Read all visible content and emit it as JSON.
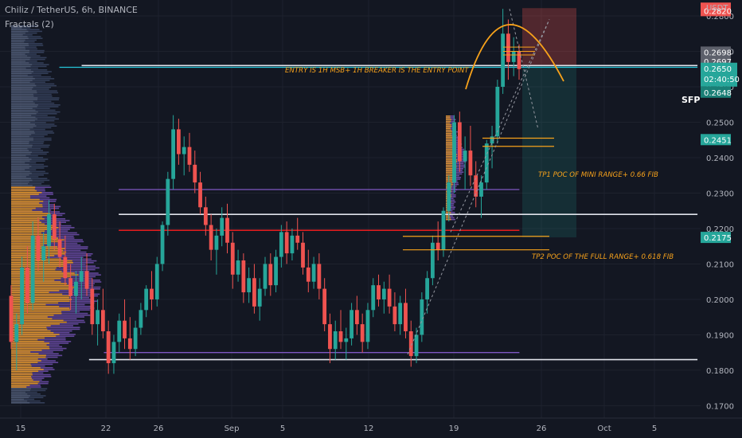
{
  "header": {
    "symbol_line": "Chiliz / TetherUS, 6h, BINANCE",
    "indicator": "Fractals (2)"
  },
  "axis_unit": "USDT",
  "colors": {
    "background": "#131722",
    "bull": "#26a69a",
    "bear": "#ef5350",
    "orange": "#f7a21b",
    "purple": "#7e57c2",
    "white_line": "#e0e3eb",
    "cyan_line": "#26c6da",
    "red_line": "#ff1e1e"
  },
  "chart_data": {
    "type": "candlestick",
    "x_ticks": [
      "15",
      "22",
      "26",
      "Sep",
      "5",
      "12",
      "19",
      "26",
      "Oct",
      "5"
    ],
    "y_ticks": [
      "0.2800",
      "0.2700",
      "0.2600",
      "0.2500",
      "0.2400",
      "0.2300",
      "0.2200",
      "0.2100",
      "0.2000",
      "0.1900",
      "0.1800",
      "0.1700"
    ],
    "ylim": [
      0.1665,
      0.2845
    ],
    "price_labels": [
      {
        "text": "0.2822",
        "price": 0.2822,
        "color": "#ef5350"
      },
      {
        "text": "0.2820",
        "price": 0.2815,
        "color": "#ef5350"
      },
      {
        "text": "0.2698",
        "price": 0.2698,
        "color": "#5d606b"
      },
      {
        "text": "0.2697",
        "price": 0.2672,
        "color": "#5d606b"
      },
      {
        "text": "0.2451",
        "price": 0.2451,
        "color": "#26a69a"
      },
      {
        "text": "0.2175",
        "price": 0.2175,
        "color": "#26a69a"
      }
    ],
    "current_price": {
      "price": "0.2650",
      "countdown": "02:40:50",
      "prev": "0.2648"
    },
    "annotations": {
      "entry": "ENTRY IS 1H MSB+ 1H BREAKER IS THE ENTRY POINT",
      "tp1": "TP1 POC OF MINI RANGE+ 0.66 FIB",
      "tp2": "TP2 POC OF THE FULL RANGE+ 0.618 FIB",
      "sfp": "SFP"
    },
    "levels": [
      {
        "price": 0.2655,
        "color": "cyan",
        "from": 0.08,
        "to": 0.94
      },
      {
        "price": 0.266,
        "color": "white",
        "from": 0.11,
        "to": 0.94
      },
      {
        "price": 0.231,
        "color": "purple",
        "from": 0.16,
        "to": 0.7
      },
      {
        "price": 0.224,
        "color": "white",
        "from": 0.16,
        "to": 0.94
      },
      {
        "price": 0.2195,
        "color": "red",
        "from": 0.16,
        "to": 0.7
      },
      {
        "price": 0.185,
        "color": "purple",
        "from": 0.14,
        "to": 0.7
      },
      {
        "price": 0.183,
        "color": "white",
        "from": 0.12,
        "to": 0.94
      }
    ],
    "candles": [
      {
        "o": 0.201,
        "h": 0.204,
        "l": 0.186,
        "c": 0.188
      },
      {
        "o": 0.188,
        "h": 0.196,
        "l": 0.18,
        "c": 0.193
      },
      {
        "o": 0.193,
        "h": 0.212,
        "l": 0.19,
        "c": 0.209
      },
      {
        "o": 0.209,
        "h": 0.215,
        "l": 0.196,
        "c": 0.199
      },
      {
        "o": 0.199,
        "h": 0.222,
        "l": 0.197,
        "c": 0.218
      },
      {
        "o": 0.218,
        "h": 0.223,
        "l": 0.208,
        "c": 0.211
      },
      {
        "o": 0.211,
        "h": 0.219,
        "l": 0.205,
        "c": 0.215
      },
      {
        "o": 0.215,
        "h": 0.228,
        "l": 0.21,
        "c": 0.224
      },
      {
        "o": 0.224,
        "h": 0.227,
        "l": 0.214,
        "c": 0.217
      },
      {
        "o": 0.217,
        "h": 0.222,
        "l": 0.209,
        "c": 0.212
      },
      {
        "o": 0.212,
        "h": 0.218,
        "l": 0.204,
        "c": 0.206
      },
      {
        "o": 0.206,
        "h": 0.21,
        "l": 0.197,
        "c": 0.201
      },
      {
        "o": 0.201,
        "h": 0.208,
        "l": 0.196,
        "c": 0.205
      },
      {
        "o": 0.205,
        "h": 0.212,
        "l": 0.2,
        "c": 0.208
      },
      {
        "o": 0.208,
        "h": 0.213,
        "l": 0.201,
        "c": 0.203
      },
      {
        "o": 0.203,
        "h": 0.206,
        "l": 0.19,
        "c": 0.193
      },
      {
        "o": 0.193,
        "h": 0.2,
        "l": 0.187,
        "c": 0.197
      },
      {
        "o": 0.197,
        "h": 0.203,
        "l": 0.189,
        "c": 0.191
      },
      {
        "o": 0.191,
        "h": 0.194,
        "l": 0.179,
        "c": 0.182
      },
      {
        "o": 0.182,
        "h": 0.19,
        "l": 0.179,
        "c": 0.188
      },
      {
        "o": 0.188,
        "h": 0.196,
        "l": 0.185,
        "c": 0.194
      },
      {
        "o": 0.194,
        "h": 0.2,
        "l": 0.186,
        "c": 0.189
      },
      {
        "o": 0.189,
        "h": 0.195,
        "l": 0.183,
        "c": 0.186
      },
      {
        "o": 0.186,
        "h": 0.194,
        "l": 0.184,
        "c": 0.192
      },
      {
        "o": 0.192,
        "h": 0.199,
        "l": 0.19,
        "c": 0.197
      },
      {
        "o": 0.197,
        "h": 0.204,
        "l": 0.195,
        "c": 0.203
      },
      {
        "o": 0.203,
        "h": 0.208,
        "l": 0.197,
        "c": 0.2
      },
      {
        "o": 0.2,
        "h": 0.212,
        "l": 0.198,
        "c": 0.21
      },
      {
        "o": 0.21,
        "h": 0.222,
        "l": 0.208,
        "c": 0.221
      },
      {
        "o": 0.221,
        "h": 0.236,
        "l": 0.218,
        "c": 0.234
      },
      {
        "o": 0.234,
        "h": 0.252,
        "l": 0.231,
        "c": 0.248
      },
      {
        "o": 0.248,
        "h": 0.251,
        "l": 0.238,
        "c": 0.241
      },
      {
        "o": 0.241,
        "h": 0.246,
        "l": 0.235,
        "c": 0.243
      },
      {
        "o": 0.243,
        "h": 0.247,
        "l": 0.236,
        "c": 0.238
      },
      {
        "o": 0.238,
        "h": 0.242,
        "l": 0.23,
        "c": 0.233
      },
      {
        "o": 0.233,
        "h": 0.236,
        "l": 0.224,
        "c": 0.226
      },
      {
        "o": 0.226,
        "h": 0.229,
        "l": 0.218,
        "c": 0.221
      },
      {
        "o": 0.221,
        "h": 0.224,
        "l": 0.211,
        "c": 0.214
      },
      {
        "o": 0.214,
        "h": 0.22,
        "l": 0.207,
        "c": 0.218
      },
      {
        "o": 0.218,
        "h": 0.226,
        "l": 0.215,
        "c": 0.223
      },
      {
        "o": 0.223,
        "h": 0.227,
        "l": 0.213,
        "c": 0.216
      },
      {
        "o": 0.216,
        "h": 0.219,
        "l": 0.203,
        "c": 0.207
      },
      {
        "o": 0.207,
        "h": 0.214,
        "l": 0.205,
        "c": 0.211
      },
      {
        "o": 0.211,
        "h": 0.213,
        "l": 0.199,
        "c": 0.202
      },
      {
        "o": 0.202,
        "h": 0.209,
        "l": 0.199,
        "c": 0.206
      },
      {
        "o": 0.206,
        "h": 0.21,
        "l": 0.196,
        "c": 0.198
      },
      {
        "o": 0.198,
        "h": 0.206,
        "l": 0.194,
        "c": 0.203
      },
      {
        "o": 0.203,
        "h": 0.212,
        "l": 0.201,
        "c": 0.21
      },
      {
        "o": 0.21,
        "h": 0.213,
        "l": 0.201,
        "c": 0.204
      },
      {
        "o": 0.204,
        "h": 0.214,
        "l": 0.202,
        "c": 0.212
      },
      {
        "o": 0.212,
        "h": 0.221,
        "l": 0.209,
        "c": 0.219
      },
      {
        "o": 0.219,
        "h": 0.222,
        "l": 0.21,
        "c": 0.213
      },
      {
        "o": 0.213,
        "h": 0.22,
        "l": 0.211,
        "c": 0.218
      },
      {
        "o": 0.218,
        "h": 0.223,
        "l": 0.214,
        "c": 0.216
      },
      {
        "o": 0.216,
        "h": 0.219,
        "l": 0.207,
        "c": 0.209
      },
      {
        "o": 0.209,
        "h": 0.214,
        "l": 0.202,
        "c": 0.205
      },
      {
        "o": 0.205,
        "h": 0.212,
        "l": 0.203,
        "c": 0.21
      },
      {
        "o": 0.21,
        "h": 0.213,
        "l": 0.2,
        "c": 0.203
      },
      {
        "o": 0.203,
        "h": 0.206,
        "l": 0.191,
        "c": 0.193
      },
      {
        "o": 0.193,
        "h": 0.196,
        "l": 0.182,
        "c": 0.186
      },
      {
        "o": 0.186,
        "h": 0.194,
        "l": 0.183,
        "c": 0.191
      },
      {
        "o": 0.191,
        "h": 0.197,
        "l": 0.186,
        "c": 0.188
      },
      {
        "o": 0.188,
        "h": 0.192,
        "l": 0.183,
        "c": 0.189
      },
      {
        "o": 0.189,
        "h": 0.199,
        "l": 0.187,
        "c": 0.197
      },
      {
        "o": 0.197,
        "h": 0.201,
        "l": 0.19,
        "c": 0.193
      },
      {
        "o": 0.193,
        "h": 0.196,
        "l": 0.185,
        "c": 0.188
      },
      {
        "o": 0.188,
        "h": 0.199,
        "l": 0.186,
        "c": 0.197
      },
      {
        "o": 0.197,
        "h": 0.206,
        "l": 0.195,
        "c": 0.204
      },
      {
        "o": 0.204,
        "h": 0.207,
        "l": 0.198,
        "c": 0.2
      },
      {
        "o": 0.2,
        "h": 0.205,
        "l": 0.196,
        "c": 0.203
      },
      {
        "o": 0.203,
        "h": 0.207,
        "l": 0.196,
        "c": 0.198
      },
      {
        "o": 0.198,
        "h": 0.202,
        "l": 0.191,
        "c": 0.193
      },
      {
        "o": 0.193,
        "h": 0.201,
        "l": 0.19,
        "c": 0.199
      },
      {
        "o": 0.199,
        "h": 0.203,
        "l": 0.189,
        "c": 0.191
      },
      {
        "o": 0.191,
        "h": 0.194,
        "l": 0.181,
        "c": 0.184
      },
      {
        "o": 0.184,
        "h": 0.192,
        "l": 0.182,
        "c": 0.19
      },
      {
        "o": 0.19,
        "h": 0.202,
        "l": 0.188,
        "c": 0.2
      },
      {
        "o": 0.2,
        "h": 0.208,
        "l": 0.196,
        "c": 0.206
      },
      {
        "o": 0.206,
        "h": 0.218,
        "l": 0.204,
        "c": 0.216
      },
      {
        "o": 0.216,
        "h": 0.222,
        "l": 0.211,
        "c": 0.214
      },
      {
        "o": 0.214,
        "h": 0.226,
        "l": 0.212,
        "c": 0.225
      },
      {
        "o": 0.225,
        "h": 0.235,
        "l": 0.222,
        "c": 0.233
      },
      {
        "o": 0.233,
        "h": 0.252,
        "l": 0.23,
        "c": 0.25
      },
      {
        "o": 0.25,
        "h": 0.253,
        "l": 0.236,
        "c": 0.239
      },
      {
        "o": 0.239,
        "h": 0.246,
        "l": 0.231,
        "c": 0.242
      },
      {
        "o": 0.242,
        "h": 0.249,
        "l": 0.232,
        "c": 0.235
      },
      {
        "o": 0.235,
        "h": 0.239,
        "l": 0.226,
        "c": 0.229
      },
      {
        "o": 0.229,
        "h": 0.235,
        "l": 0.223,
        "c": 0.233
      },
      {
        "o": 0.233,
        "h": 0.245,
        "l": 0.231,
        "c": 0.244
      },
      {
        "o": 0.244,
        "h": 0.249,
        "l": 0.237,
        "c": 0.246
      },
      {
        "o": 0.246,
        "h": 0.262,
        "l": 0.244,
        "c": 0.26
      },
      {
        "o": 0.26,
        "h": 0.282,
        "l": 0.258,
        "c": 0.275
      },
      {
        "o": 0.275,
        "h": 0.279,
        "l": 0.262,
        "c": 0.267
      },
      {
        "o": 0.267,
        "h": 0.274,
        "l": 0.263,
        "c": 0.27
      },
      {
        "o": 0.27,
        "h": 0.272,
        "l": 0.262,
        "c": 0.265
      }
    ]
  }
}
